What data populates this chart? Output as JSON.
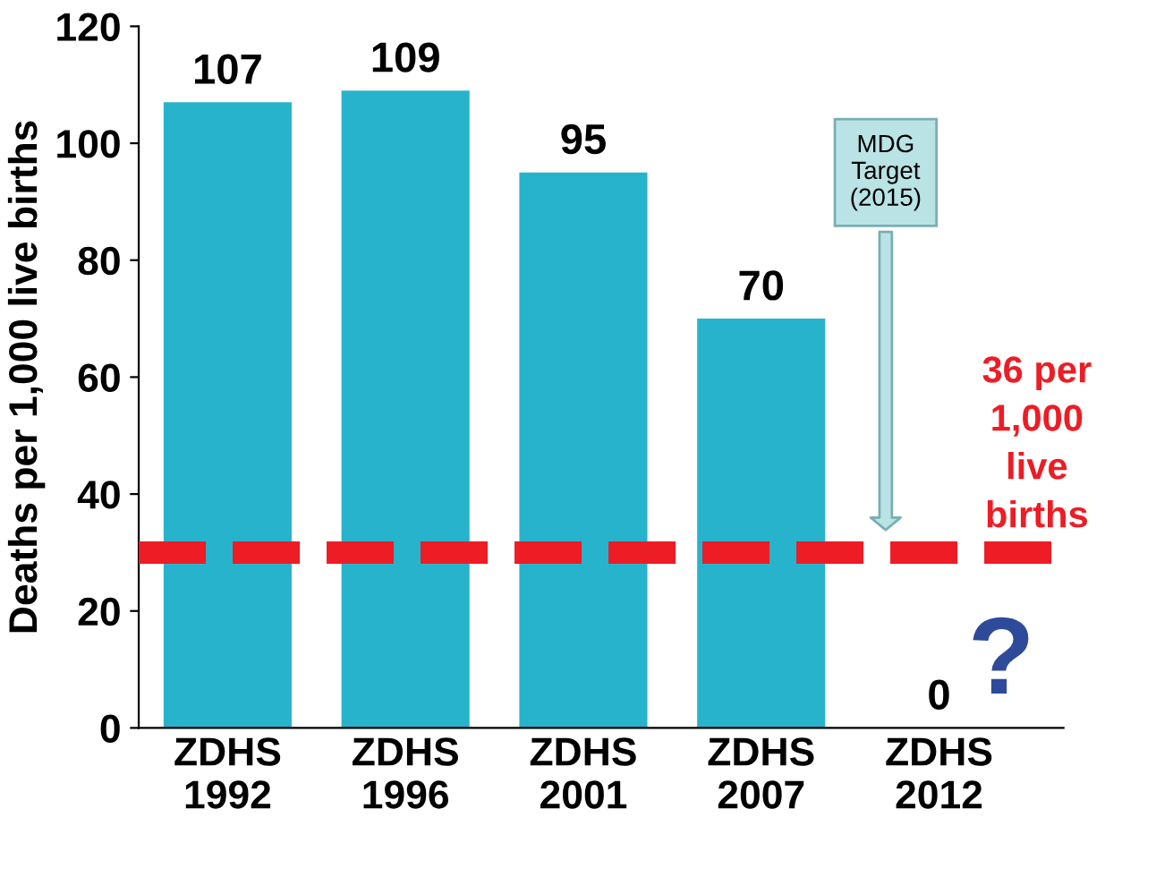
{
  "chart_data": {
    "type": "bar",
    "ylabel": "Deaths per 1,000 live births",
    "categories": [
      "ZDHS\n1992",
      "ZDHS\n1996",
      "ZDHS\n2001",
      "ZDHS\n2007",
      "ZDHS\n2012"
    ],
    "values": [
      107,
      109,
      95,
      70,
      0
    ],
    "color": "#27b3cc",
    "data_labels": true,
    "ylim": [
      0,
      120
    ],
    "yticks": [
      0,
      20,
      40,
      60,
      80,
      100,
      120
    ],
    "grid": false,
    "ref_lines": [
      {
        "axis": "y",
        "value": 30,
        "label": "36 per\n1,000\nlive\nbirths",
        "color": "#ee1c25",
        "line_style": "dashed"
      }
    ],
    "annotations": [
      "MDG\nTarget\n(2015)",
      "?"
    ]
  }
}
